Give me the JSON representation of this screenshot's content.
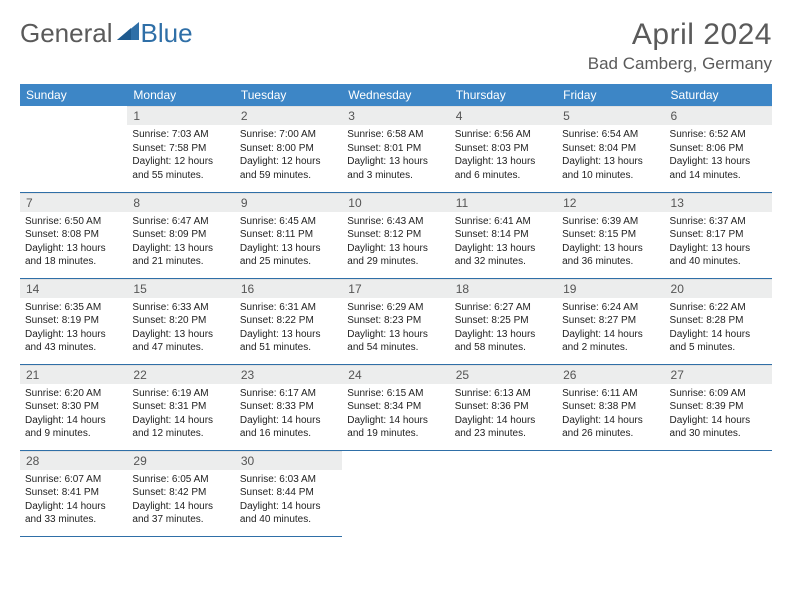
{
  "brand": {
    "part1": "General",
    "part2": "Blue"
  },
  "title": "April 2024",
  "location": "Bad Camberg, Germany",
  "colors": {
    "header_bg": "#3d86c6",
    "header_text": "#ffffff",
    "daynum_bg": "#eceded",
    "border": "#2f6fa7",
    "text": "#333333",
    "brand_gray": "#5a5a5a",
    "brand_blue": "#2f6fa7"
  },
  "weekdays": [
    "Sunday",
    "Monday",
    "Tuesday",
    "Wednesday",
    "Thursday",
    "Friday",
    "Saturday"
  ],
  "weeks": [
    [
      {
        "n": "",
        "l1": "",
        "l2": "",
        "l3": "",
        "l4": "",
        "empty": true
      },
      {
        "n": "1",
        "l1": "Sunrise: 7:03 AM",
        "l2": "Sunset: 7:58 PM",
        "l3": "Daylight: 12 hours",
        "l4": "and 55 minutes."
      },
      {
        "n": "2",
        "l1": "Sunrise: 7:00 AM",
        "l2": "Sunset: 8:00 PM",
        "l3": "Daylight: 12 hours",
        "l4": "and 59 minutes."
      },
      {
        "n": "3",
        "l1": "Sunrise: 6:58 AM",
        "l2": "Sunset: 8:01 PM",
        "l3": "Daylight: 13 hours",
        "l4": "and 3 minutes."
      },
      {
        "n": "4",
        "l1": "Sunrise: 6:56 AM",
        "l2": "Sunset: 8:03 PM",
        "l3": "Daylight: 13 hours",
        "l4": "and 6 minutes."
      },
      {
        "n": "5",
        "l1": "Sunrise: 6:54 AM",
        "l2": "Sunset: 8:04 PM",
        "l3": "Daylight: 13 hours",
        "l4": "and 10 minutes."
      },
      {
        "n": "6",
        "l1": "Sunrise: 6:52 AM",
        "l2": "Sunset: 8:06 PM",
        "l3": "Daylight: 13 hours",
        "l4": "and 14 minutes."
      }
    ],
    [
      {
        "n": "7",
        "l1": "Sunrise: 6:50 AM",
        "l2": "Sunset: 8:08 PM",
        "l3": "Daylight: 13 hours",
        "l4": "and 18 minutes."
      },
      {
        "n": "8",
        "l1": "Sunrise: 6:47 AM",
        "l2": "Sunset: 8:09 PM",
        "l3": "Daylight: 13 hours",
        "l4": "and 21 minutes."
      },
      {
        "n": "9",
        "l1": "Sunrise: 6:45 AM",
        "l2": "Sunset: 8:11 PM",
        "l3": "Daylight: 13 hours",
        "l4": "and 25 minutes."
      },
      {
        "n": "10",
        "l1": "Sunrise: 6:43 AM",
        "l2": "Sunset: 8:12 PM",
        "l3": "Daylight: 13 hours",
        "l4": "and 29 minutes."
      },
      {
        "n": "11",
        "l1": "Sunrise: 6:41 AM",
        "l2": "Sunset: 8:14 PM",
        "l3": "Daylight: 13 hours",
        "l4": "and 32 minutes."
      },
      {
        "n": "12",
        "l1": "Sunrise: 6:39 AM",
        "l2": "Sunset: 8:15 PM",
        "l3": "Daylight: 13 hours",
        "l4": "and 36 minutes."
      },
      {
        "n": "13",
        "l1": "Sunrise: 6:37 AM",
        "l2": "Sunset: 8:17 PM",
        "l3": "Daylight: 13 hours",
        "l4": "and 40 minutes."
      }
    ],
    [
      {
        "n": "14",
        "l1": "Sunrise: 6:35 AM",
        "l2": "Sunset: 8:19 PM",
        "l3": "Daylight: 13 hours",
        "l4": "and 43 minutes."
      },
      {
        "n": "15",
        "l1": "Sunrise: 6:33 AM",
        "l2": "Sunset: 8:20 PM",
        "l3": "Daylight: 13 hours",
        "l4": "and 47 minutes."
      },
      {
        "n": "16",
        "l1": "Sunrise: 6:31 AM",
        "l2": "Sunset: 8:22 PM",
        "l3": "Daylight: 13 hours",
        "l4": "and 51 minutes."
      },
      {
        "n": "17",
        "l1": "Sunrise: 6:29 AM",
        "l2": "Sunset: 8:23 PM",
        "l3": "Daylight: 13 hours",
        "l4": "and 54 minutes."
      },
      {
        "n": "18",
        "l1": "Sunrise: 6:27 AM",
        "l2": "Sunset: 8:25 PM",
        "l3": "Daylight: 13 hours",
        "l4": "and 58 minutes."
      },
      {
        "n": "19",
        "l1": "Sunrise: 6:24 AM",
        "l2": "Sunset: 8:27 PM",
        "l3": "Daylight: 14 hours",
        "l4": "and 2 minutes."
      },
      {
        "n": "20",
        "l1": "Sunrise: 6:22 AM",
        "l2": "Sunset: 8:28 PM",
        "l3": "Daylight: 14 hours",
        "l4": "and 5 minutes."
      }
    ],
    [
      {
        "n": "21",
        "l1": "Sunrise: 6:20 AM",
        "l2": "Sunset: 8:30 PM",
        "l3": "Daylight: 14 hours",
        "l4": "and 9 minutes."
      },
      {
        "n": "22",
        "l1": "Sunrise: 6:19 AM",
        "l2": "Sunset: 8:31 PM",
        "l3": "Daylight: 14 hours",
        "l4": "and 12 minutes."
      },
      {
        "n": "23",
        "l1": "Sunrise: 6:17 AM",
        "l2": "Sunset: 8:33 PM",
        "l3": "Daylight: 14 hours",
        "l4": "and 16 minutes."
      },
      {
        "n": "24",
        "l1": "Sunrise: 6:15 AM",
        "l2": "Sunset: 8:34 PM",
        "l3": "Daylight: 14 hours",
        "l4": "and 19 minutes."
      },
      {
        "n": "25",
        "l1": "Sunrise: 6:13 AM",
        "l2": "Sunset: 8:36 PM",
        "l3": "Daylight: 14 hours",
        "l4": "and 23 minutes."
      },
      {
        "n": "26",
        "l1": "Sunrise: 6:11 AM",
        "l2": "Sunset: 8:38 PM",
        "l3": "Daylight: 14 hours",
        "l4": "and 26 minutes."
      },
      {
        "n": "27",
        "l1": "Sunrise: 6:09 AM",
        "l2": "Sunset: 8:39 PM",
        "l3": "Daylight: 14 hours",
        "l4": "and 30 minutes."
      }
    ],
    [
      {
        "n": "28",
        "l1": "Sunrise: 6:07 AM",
        "l2": "Sunset: 8:41 PM",
        "l3": "Daylight: 14 hours",
        "l4": "and 33 minutes."
      },
      {
        "n": "29",
        "l1": "Sunrise: 6:05 AM",
        "l2": "Sunset: 8:42 PM",
        "l3": "Daylight: 14 hours",
        "l4": "and 37 minutes."
      },
      {
        "n": "30",
        "l1": "Sunrise: 6:03 AM",
        "l2": "Sunset: 8:44 PM",
        "l3": "Daylight: 14 hours",
        "l4": "and 40 minutes."
      },
      {
        "n": "",
        "l1": "",
        "l2": "",
        "l3": "",
        "l4": "",
        "empty": true,
        "trailing": true
      },
      {
        "n": "",
        "l1": "",
        "l2": "",
        "l3": "",
        "l4": "",
        "empty": true,
        "trailing": true
      },
      {
        "n": "",
        "l1": "",
        "l2": "",
        "l3": "",
        "l4": "",
        "empty": true,
        "trailing": true
      },
      {
        "n": "",
        "l1": "",
        "l2": "",
        "l3": "",
        "l4": "",
        "empty": true,
        "trailing": true
      }
    ]
  ]
}
